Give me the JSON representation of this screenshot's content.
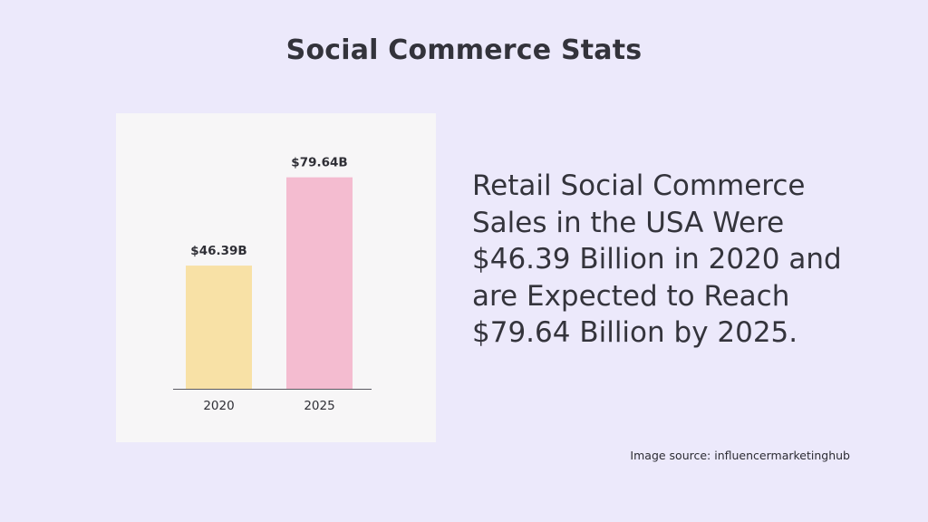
{
  "page": {
    "title": "Social Commerce Stats",
    "description": "Retail Social Commerce Sales in the USA Were $46.39 Billion in 2020 and are Expected to Reach $79.64 Billion by 2025.",
    "source": "Image source: influencermarketinghub"
  },
  "chart_data": {
    "type": "bar",
    "categories": [
      "2020",
      "2025"
    ],
    "values": [
      46.39,
      79.64
    ],
    "data_labels": [
      "$46.39B",
      "$79.64B"
    ],
    "colors": [
      "#f8e1a6",
      "#f4bcd0"
    ],
    "ylim": [
      0,
      100
    ],
    "grid": false,
    "legend": "none",
    "title": "",
    "xlabel": "",
    "ylabel": ""
  }
}
